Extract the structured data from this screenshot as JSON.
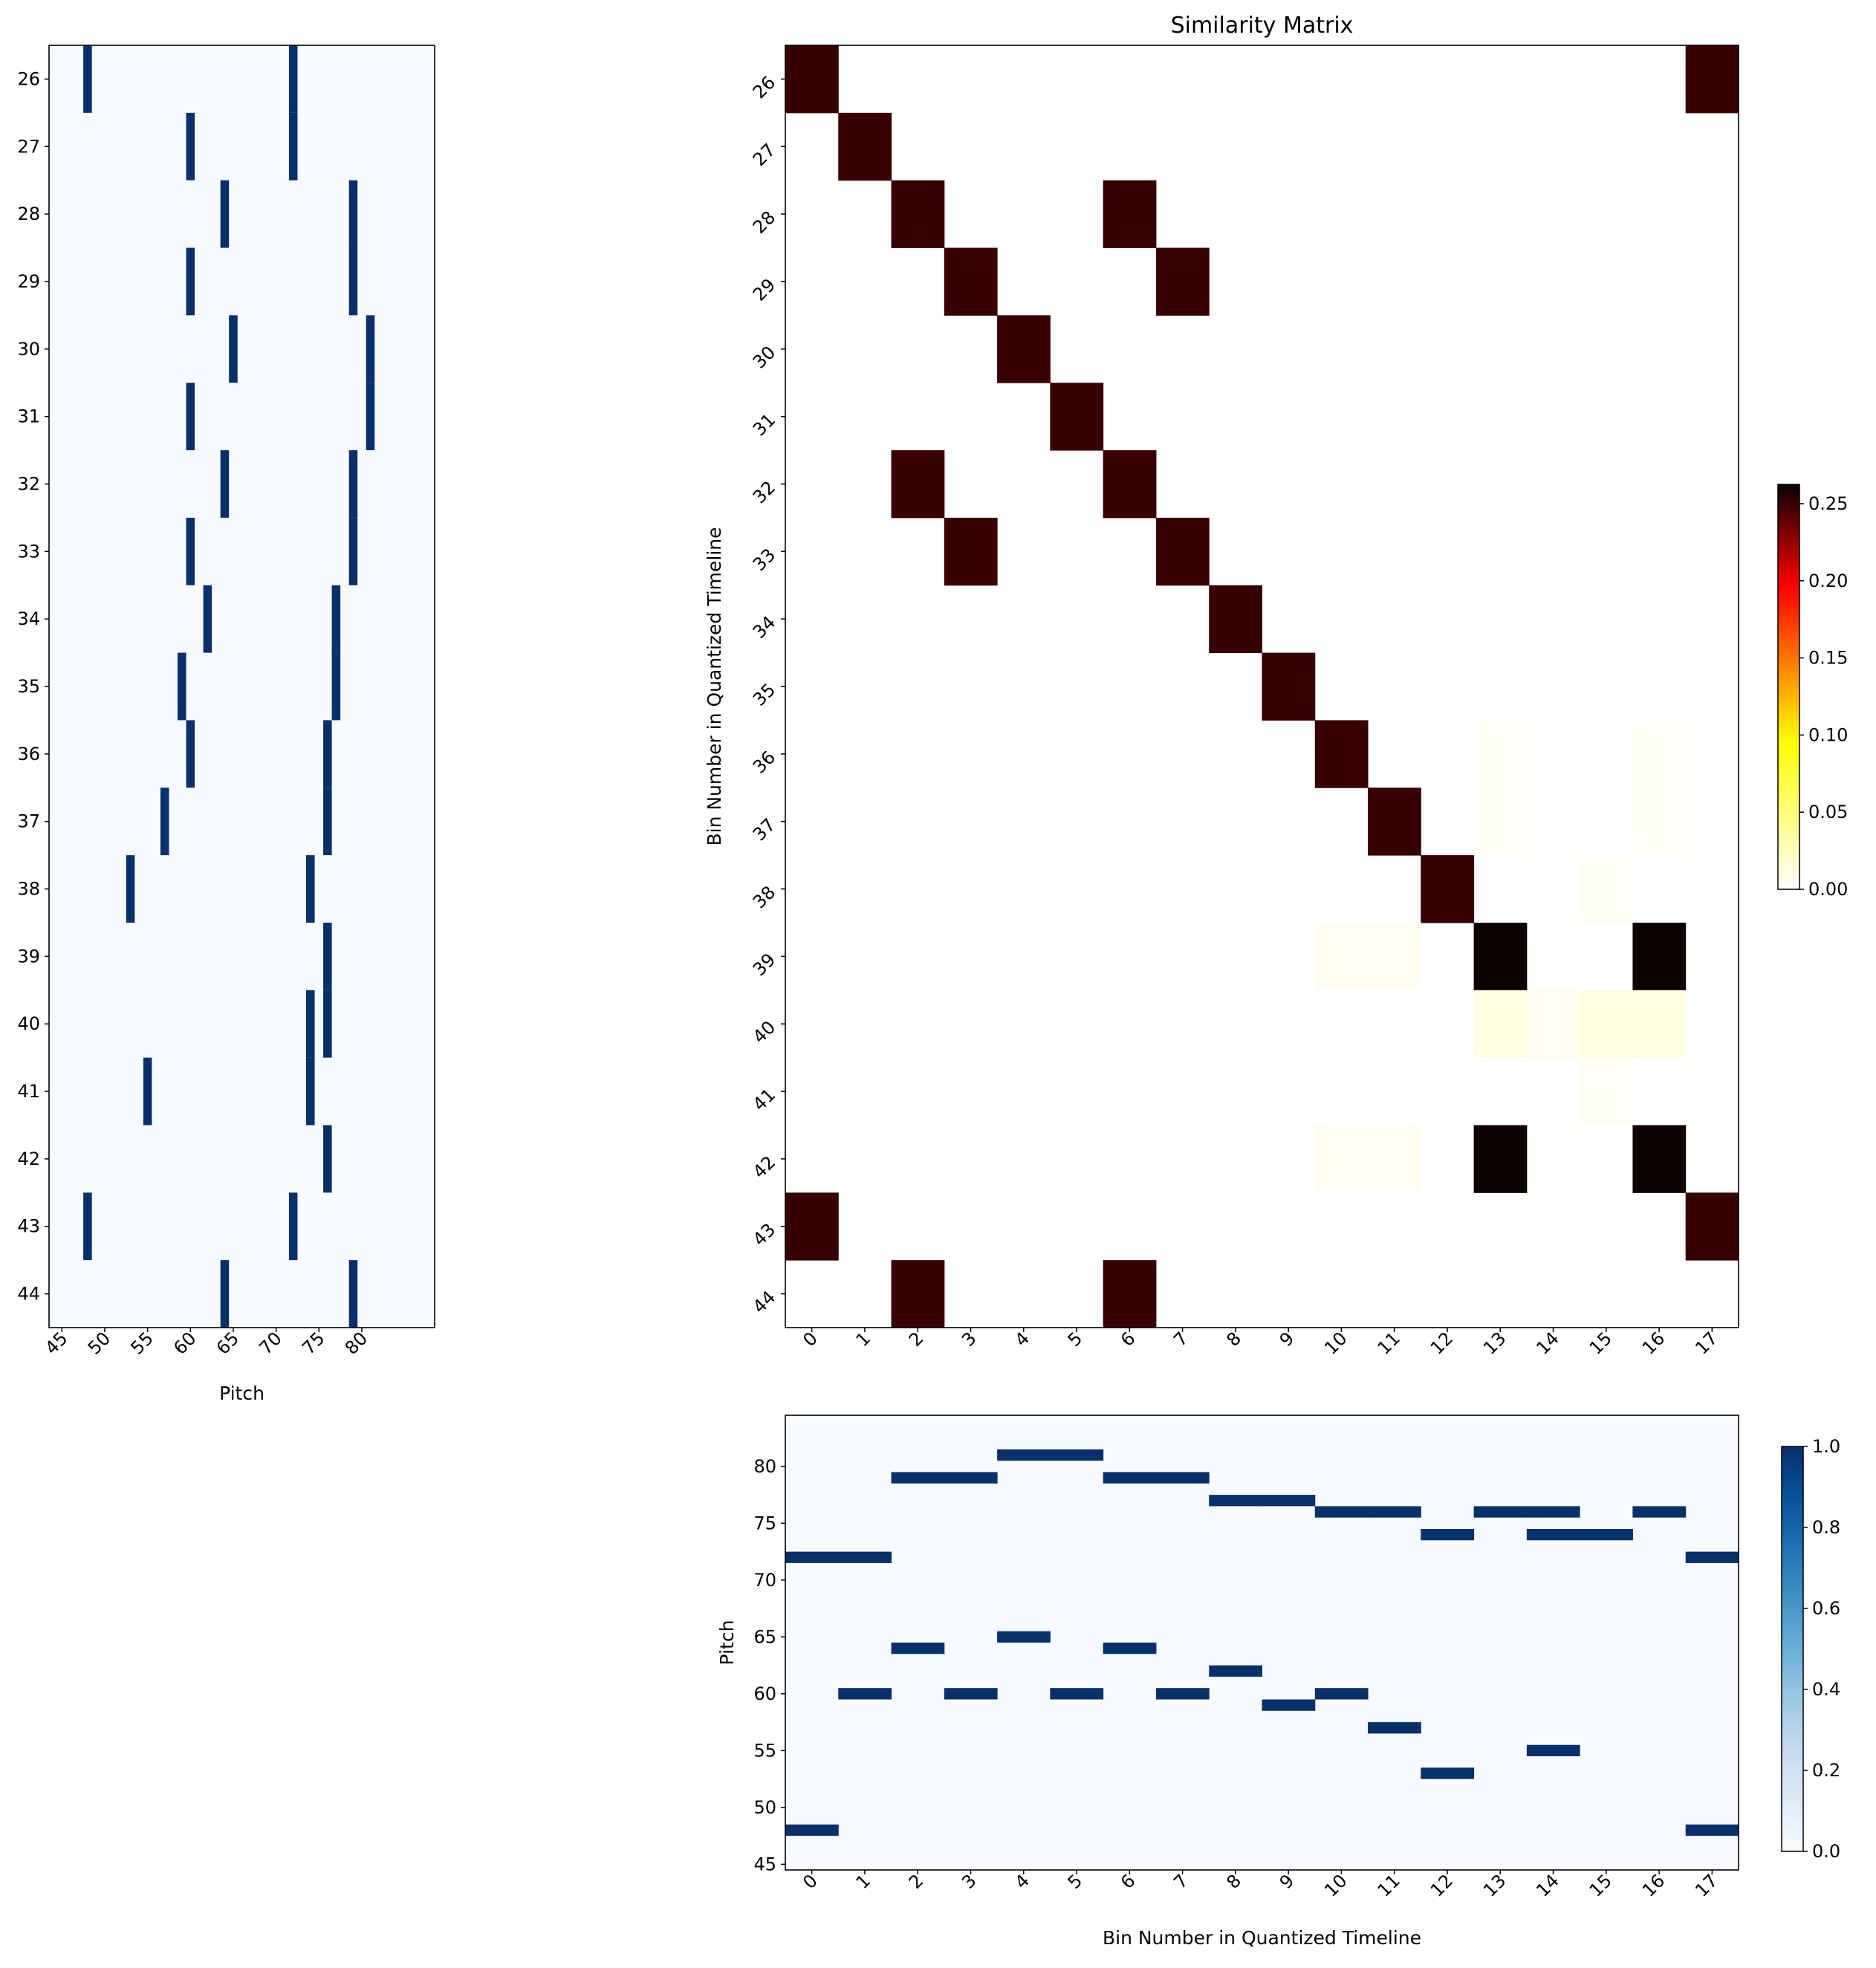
{
  "chart_data": [
    {
      "type": "heatmap",
      "panel": "left pitch roll",
      "title": "",
      "xlabel": "Pitch",
      "ylabel": "",
      "x_ticks": [
        45,
        50,
        55,
        60,
        65,
        70,
        75,
        80
      ],
      "xlim": [
        43.5,
        88.5
      ],
      "y_categories": [
        "26",
        "27",
        "28",
        "29",
        "30",
        "31",
        "32",
        "33",
        "34",
        "35",
        "36",
        "37",
        "38",
        "39",
        "40",
        "41",
        "42",
        "43",
        "44"
      ],
      "colormap": "Blues",
      "clim": [
        0,
        1
      ],
      "notes": [
        [
          48,
          72
        ],
        [
          60,
          72
        ],
        [
          64,
          79
        ],
        [
          60,
          79
        ],
        [
          65,
          81
        ],
        [
          60,
          81
        ],
        [
          64,
          79
        ],
        [
          60,
          79
        ],
        [
          62,
          77
        ],
        [
          59,
          77
        ],
        [
          60,
          76
        ],
        [
          57,
          76
        ],
        [
          53,
          74
        ],
        [
          76
        ],
        [
          74,
          76
        ],
        [
          55,
          74
        ],
        [
          76
        ],
        [
          48,
          72
        ],
        [
          64,
          79
        ]
      ]
    },
    {
      "type": "heatmap",
      "panel": "similarity matrix",
      "title": "Similarity Matrix",
      "xlabel": "",
      "ylabel": "Bin Number in Quantized Timeline",
      "x_categories": [
        "0",
        "1",
        "2",
        "3",
        "4",
        "5",
        "6",
        "7",
        "8",
        "9",
        "10",
        "11",
        "12",
        "13",
        "14",
        "15",
        "16",
        "17"
      ],
      "y_categories": [
        "26",
        "27",
        "28",
        "29",
        "30",
        "31",
        "32",
        "33",
        "34",
        "35",
        "36",
        "37",
        "38",
        "39",
        "40",
        "41",
        "42",
        "43",
        "44"
      ],
      "colormap": "hot_r",
      "clim": [
        0,
        0.2625
      ],
      "colorbar_ticks": [
        "0.00",
        "0.05",
        "0.10",
        "0.15",
        "0.20",
        "0.25"
      ],
      "values": [
        [
          0.25,
          0,
          0,
          0,
          0,
          0,
          0,
          0,
          0,
          0,
          0,
          0,
          0,
          0,
          0,
          0,
          0,
          0.25
        ],
        [
          0,
          0.25,
          0,
          0,
          0,
          0,
          0,
          0,
          0,
          0,
          0,
          0,
          0,
          0,
          0,
          0,
          0,
          0
        ],
        [
          0,
          0,
          0.25,
          0,
          0,
          0,
          0.25,
          0,
          0,
          0,
          0,
          0,
          0,
          0,
          0,
          0,
          0,
          0
        ],
        [
          0,
          0,
          0,
          0.25,
          0,
          0,
          0,
          0.25,
          0,
          0,
          0,
          0,
          0,
          0,
          0,
          0,
          0,
          0
        ],
        [
          0,
          0,
          0,
          0,
          0.25,
          0,
          0,
          0,
          0,
          0,
          0,
          0,
          0,
          0,
          0,
          0,
          0,
          0
        ],
        [
          0,
          0,
          0,
          0,
          0,
          0.25,
          0,
          0,
          0,
          0,
          0,
          0,
          0,
          0,
          0,
          0,
          0,
          0
        ],
        [
          0,
          0,
          0.25,
          0,
          0,
          0,
          0.25,
          0,
          0,
          0,
          0,
          0,
          0,
          0,
          0,
          0,
          0,
          0
        ],
        [
          0,
          0,
          0,
          0.25,
          0,
          0,
          0,
          0.25,
          0,
          0,
          0,
          0,
          0,
          0,
          0,
          0,
          0,
          0
        ],
        [
          0,
          0,
          0,
          0,
          0,
          0,
          0,
          0,
          0.25,
          0,
          0,
          0,
          0,
          0,
          0,
          0,
          0,
          0
        ],
        [
          0,
          0,
          0,
          0,
          0,
          0,
          0,
          0,
          0,
          0.25,
          0,
          0,
          0,
          0,
          0,
          0,
          0,
          0
        ],
        [
          0,
          0,
          0,
          0,
          0,
          0,
          0,
          0,
          0,
          0,
          0.25,
          0,
          0,
          0.003,
          0,
          0,
          0.003,
          0
        ],
        [
          0,
          0,
          0,
          0,
          0,
          0,
          0,
          0,
          0,
          0,
          0,
          0.25,
          0,
          0.003,
          0,
          0,
          0.003,
          0
        ],
        [
          0,
          0,
          0,
          0,
          0,
          0,
          0,
          0,
          0,
          0,
          0,
          0,
          0.25,
          0,
          0,
          0.003,
          0,
          0
        ],
        [
          0,
          0,
          0,
          0,
          0,
          0,
          0,
          0,
          0,
          0,
          0.005,
          0.005,
          0,
          0.262,
          0,
          0,
          0.262,
          0
        ],
        [
          0,
          0,
          0,
          0,
          0,
          0,
          0,
          0,
          0,
          0,
          0,
          0,
          0,
          0.01,
          0.006,
          0.012,
          0.01,
          0
        ],
        [
          0,
          0,
          0,
          0,
          0,
          0,
          0,
          0,
          0,
          0,
          0,
          0,
          0,
          0,
          0,
          0.003,
          0,
          0
        ],
        [
          0,
          0,
          0,
          0,
          0,
          0,
          0,
          0,
          0,
          0,
          0.005,
          0.005,
          0,
          0.262,
          0,
          0,
          0.262,
          0
        ],
        [
          0.25,
          0,
          0,
          0,
          0,
          0,
          0,
          0,
          0,
          0,
          0,
          0,
          0,
          0,
          0,
          0,
          0,
          0.25
        ],
        [
          0,
          0,
          0.25,
          0,
          0,
          0,
          0.25,
          0,
          0,
          0,
          0,
          0,
          0,
          0,
          0,
          0,
          0,
          0
        ]
      ]
    },
    {
      "type": "heatmap",
      "panel": "bottom pitch roll",
      "title": "",
      "xlabel": "Bin Number in Quantized Timeline",
      "ylabel": "Pitch",
      "x_categories": [
        "0",
        "1",
        "2",
        "3",
        "4",
        "5",
        "6",
        "7",
        "8",
        "9",
        "10",
        "11",
        "12",
        "13",
        "14",
        "15",
        "16",
        "17"
      ],
      "y_ticks": [
        45,
        50,
        55,
        60,
        65,
        70,
        75,
        80
      ],
      "ylim": [
        44.5,
        84.5
      ],
      "colormap": "Blues",
      "clim": [
        0,
        1
      ],
      "colorbar_ticks": [
        "0.0",
        "0.2",
        "0.4",
        "0.6",
        "0.8",
        "1.0"
      ],
      "notes": [
        [
          48,
          72
        ],
        [
          60,
          72
        ],
        [
          64,
          79
        ],
        [
          60,
          79
        ],
        [
          65,
          81
        ],
        [
          60,
          81
        ],
        [
          64,
          79
        ],
        [
          60,
          79
        ],
        [
          62,
          77
        ],
        [
          59,
          77
        ],
        [
          60,
          76
        ],
        [
          57,
          76
        ],
        [
          53,
          74
        ],
        [
          76
        ],
        [
          55,
          74,
          76
        ],
        [
          74
        ],
        [
          76
        ],
        [
          48,
          72
        ]
      ]
    }
  ]
}
